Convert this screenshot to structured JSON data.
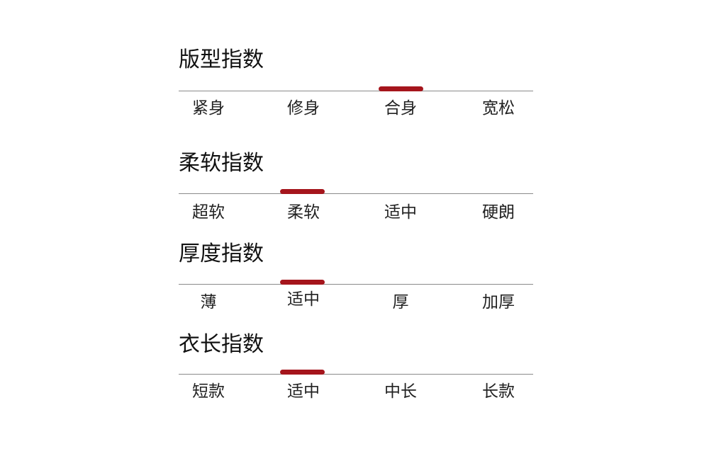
{
  "accent_color": "#a5151c",
  "indices": [
    {
      "title": "版型指数",
      "options": [
        "紧身",
        "修身",
        "合身",
        "宽松"
      ],
      "selected_index": 2,
      "selected_label": "合身"
    },
    {
      "title": "柔软指数",
      "options": [
        "超软",
        "柔软",
        "适中",
        "硬朗"
      ],
      "selected_index": 1,
      "selected_label": "柔软"
    },
    {
      "title": "厚度指数",
      "options": [
        "薄",
        "适中",
        "厚",
        "加厚"
      ],
      "selected_index": 1,
      "selected_label": "适中"
    },
    {
      "title": "衣长指数",
      "options": [
        "短款",
        "适中",
        "中长",
        "长款"
      ],
      "selected_index": 1,
      "selected_label": "适中"
    }
  ]
}
